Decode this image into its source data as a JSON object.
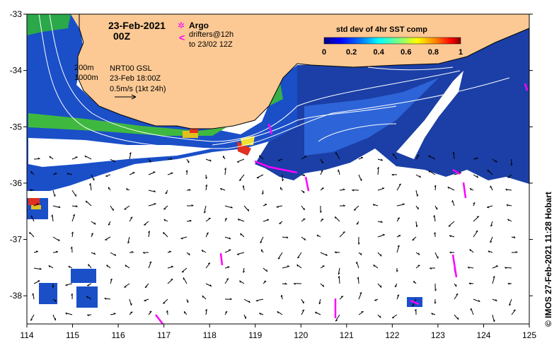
{
  "map": {
    "title_date": "23-Feb-2021",
    "title_time": "00Z",
    "lon_ticks": [
      "114",
      "115",
      "116",
      "117",
      "118",
      "119",
      "120",
      "121",
      "122",
      "123",
      "124",
      "125"
    ],
    "lat_ticks": [
      "-33",
      "-34",
      "-35",
      "-36",
      "-37",
      "-38"
    ],
    "lon_range": [
      114,
      125
    ],
    "lat_range": [
      -38.5,
      -33
    ],
    "land_color": "#fcc994",
    "ocean_gap_color": "#ffffff"
  },
  "legend": {
    "argo_symbol": "✲",
    "argo_label": "Argo",
    "drifter_symbol": "<",
    "drifter_label_line1": "drifters@12h",
    "drifter_label_line2": "to 23/02 12Z",
    "marker_color": "#ff00ff"
  },
  "colorbar": {
    "title": "std dev of 4hr SST comp",
    "ticks": [
      "0",
      "0.2",
      "0.4",
      "0.6",
      "0.8",
      "1"
    ],
    "colormap": [
      "#000080",
      "#0000ff",
      "#0080ff",
      "#00ffff",
      "#80ff80",
      "#ffff00",
      "#ff8000",
      "#ff0000",
      "#800000"
    ]
  },
  "annotations": {
    "isobath_200": "200m",
    "isobath_1000": "1000m",
    "current_source": "NRT00 GSL",
    "current_time": "23-Feb 18:00Z",
    "scale_label": "0.5m/s (1kt 24h)"
  },
  "footer": {
    "credit": "© IMOS 27-Feb-2021 11:28 Hobart"
  }
}
